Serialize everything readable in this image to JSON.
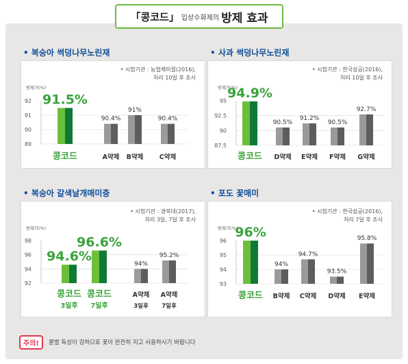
{
  "header": {
    "quote_open": "「콩코드」",
    "subtitle": "입상수화제의",
    "emphasis": "방제 효과"
  },
  "notice": {
    "badge": "주의!",
    "text": "꿀벌 독성이 강하므로 꽃이 완전히 지고 사용하시기 바랍니다"
  },
  "colors": {
    "title_blue": "#0e4f9a",
    "brand_green": "#3aa33a",
    "bar_green_light": "#6cbf3b",
    "bar_green_dark": "#0f7a36",
    "bar_gray_light": "#9a9a9a",
    "bar_gray_dark": "#5d5d5d",
    "warning_red": "#e0394d"
  },
  "chart_data": [
    {
      "type": "bar",
      "title": "• 복숭아 썩덩나무노린재",
      "note_line1": "• 시험기관 : 농협케미컬(2016),",
      "note_line2": "처리 10일 후 조사",
      "ylabel": "방제가(%)",
      "ylim": [
        89,
        92
      ],
      "yticks": [
        "92",
        "91",
        "90",
        "89"
      ],
      "categories": [
        "콩코드",
        "A약제",
        "B약제",
        "C약제"
      ],
      "values": [
        91.5,
        90.4,
        91,
        90.4
      ],
      "value_labels": [
        "91.5%",
        "90.4%",
        "91%",
        "90.4%"
      ],
      "sublabels": [
        "",
        "",
        "",
        ""
      ]
    },
    {
      "type": "bar",
      "title": "• 사과 썩덩나무노린재",
      "note_line1": "• 시험기관 : 한국삼공(2016),",
      "note_line2": "처리 10일 후 조사",
      "ylabel": "방제가(%)",
      "ylim": [
        87.5,
        95
      ],
      "yticks": [
        "95",
        "92.5",
        "90",
        "87.5"
      ],
      "categories": [
        "콩코드",
        "D약제",
        "E약제",
        "F약제",
        "G약제"
      ],
      "values": [
        94.9,
        90.5,
        91.2,
        90.5,
        92.7
      ],
      "value_labels": [
        "94.9%",
        "90.5%",
        "91.2%",
        "90.5%",
        "92.7%"
      ],
      "sublabels": [
        "",
        "",
        "",
        "",
        ""
      ]
    },
    {
      "type": "bar",
      "title": "• 복숭아 갈색날개매미충",
      "note_line1": "• 시험기관 : 경북대(2017),",
      "note_line2": "처리 3일, 7일 후 조사",
      "ylabel": "방제가(%)",
      "ylim": [
        92,
        98
      ],
      "yticks": [
        "98",
        "96",
        "94",
        "92"
      ],
      "categories": [
        "콩코드",
        "콩코드",
        "A약제",
        "A약제"
      ],
      "values": [
        94.6,
        96.6,
        94,
        95.2
      ],
      "value_labels": [
        "94.6%",
        "96.6%",
        "94%",
        "95.2%"
      ],
      "sublabels": [
        "3일후",
        "7일후",
        "3일후",
        "7일후"
      ]
    },
    {
      "type": "bar",
      "title": "• 포도 꽃매미",
      "note_line1": "• 시험기관 : 한국삼공(2016),",
      "note_line2": "처리 7일 후 조사",
      "ylabel": "방제가(%)",
      "ylim": [
        93,
        96
      ],
      "yticks": [
        "96",
        "95",
        "94",
        "93"
      ],
      "categories": [
        "콩코드",
        "B약제",
        "C약제",
        "D약제",
        "E약제"
      ],
      "values": [
        96,
        94,
        94.7,
        93.5,
        95.8
      ],
      "value_labels": [
        "96%",
        "94%",
        "94.7%",
        "93.5%",
        "95.8%"
      ],
      "sublabels": [
        "",
        "",
        "",
        "",
        ""
      ]
    }
  ]
}
